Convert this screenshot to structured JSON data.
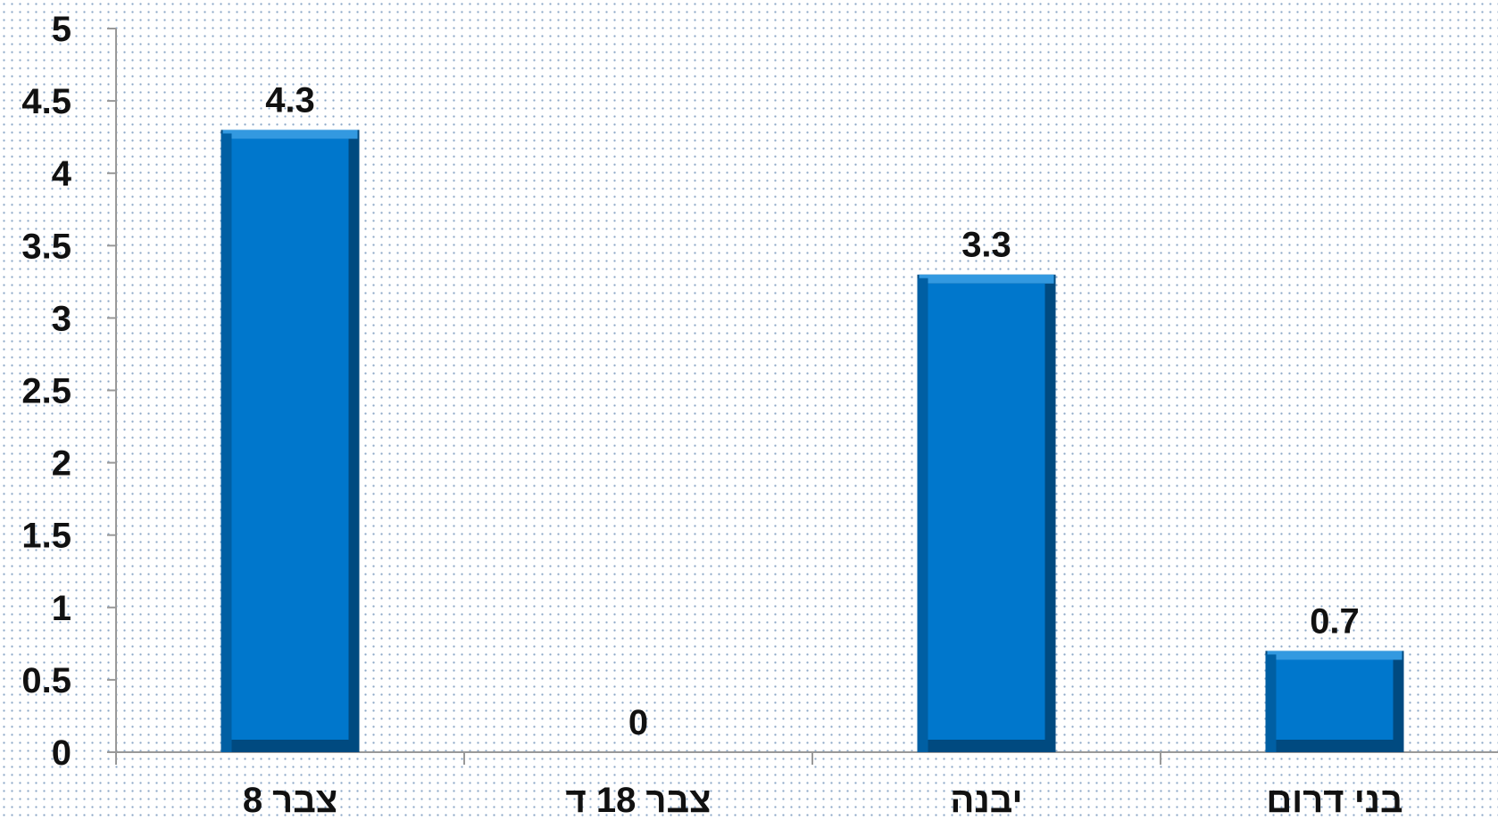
{
  "chart_data": {
    "type": "bar",
    "categories": [
      "צבר 8",
      "צבר 18 ד",
      "יבנה",
      "בני דרום"
    ],
    "values": [
      4.3,
      0,
      3.3,
      0.7
    ],
    "data_labels": [
      "4.3",
      "0",
      "3.3",
      "0.7"
    ],
    "y_ticks": [
      "0",
      "0.5",
      "1",
      "1.5",
      "2",
      "2.5",
      "3",
      "3.5",
      "4",
      "4.5",
      "5"
    ],
    "ylim": [
      0,
      5
    ],
    "grid": false,
    "legend": "none",
    "bar_color": "#0077cc",
    "bar_shadow_color": "#004a80",
    "axis_color": "#999999",
    "text_color": "#111111"
  }
}
